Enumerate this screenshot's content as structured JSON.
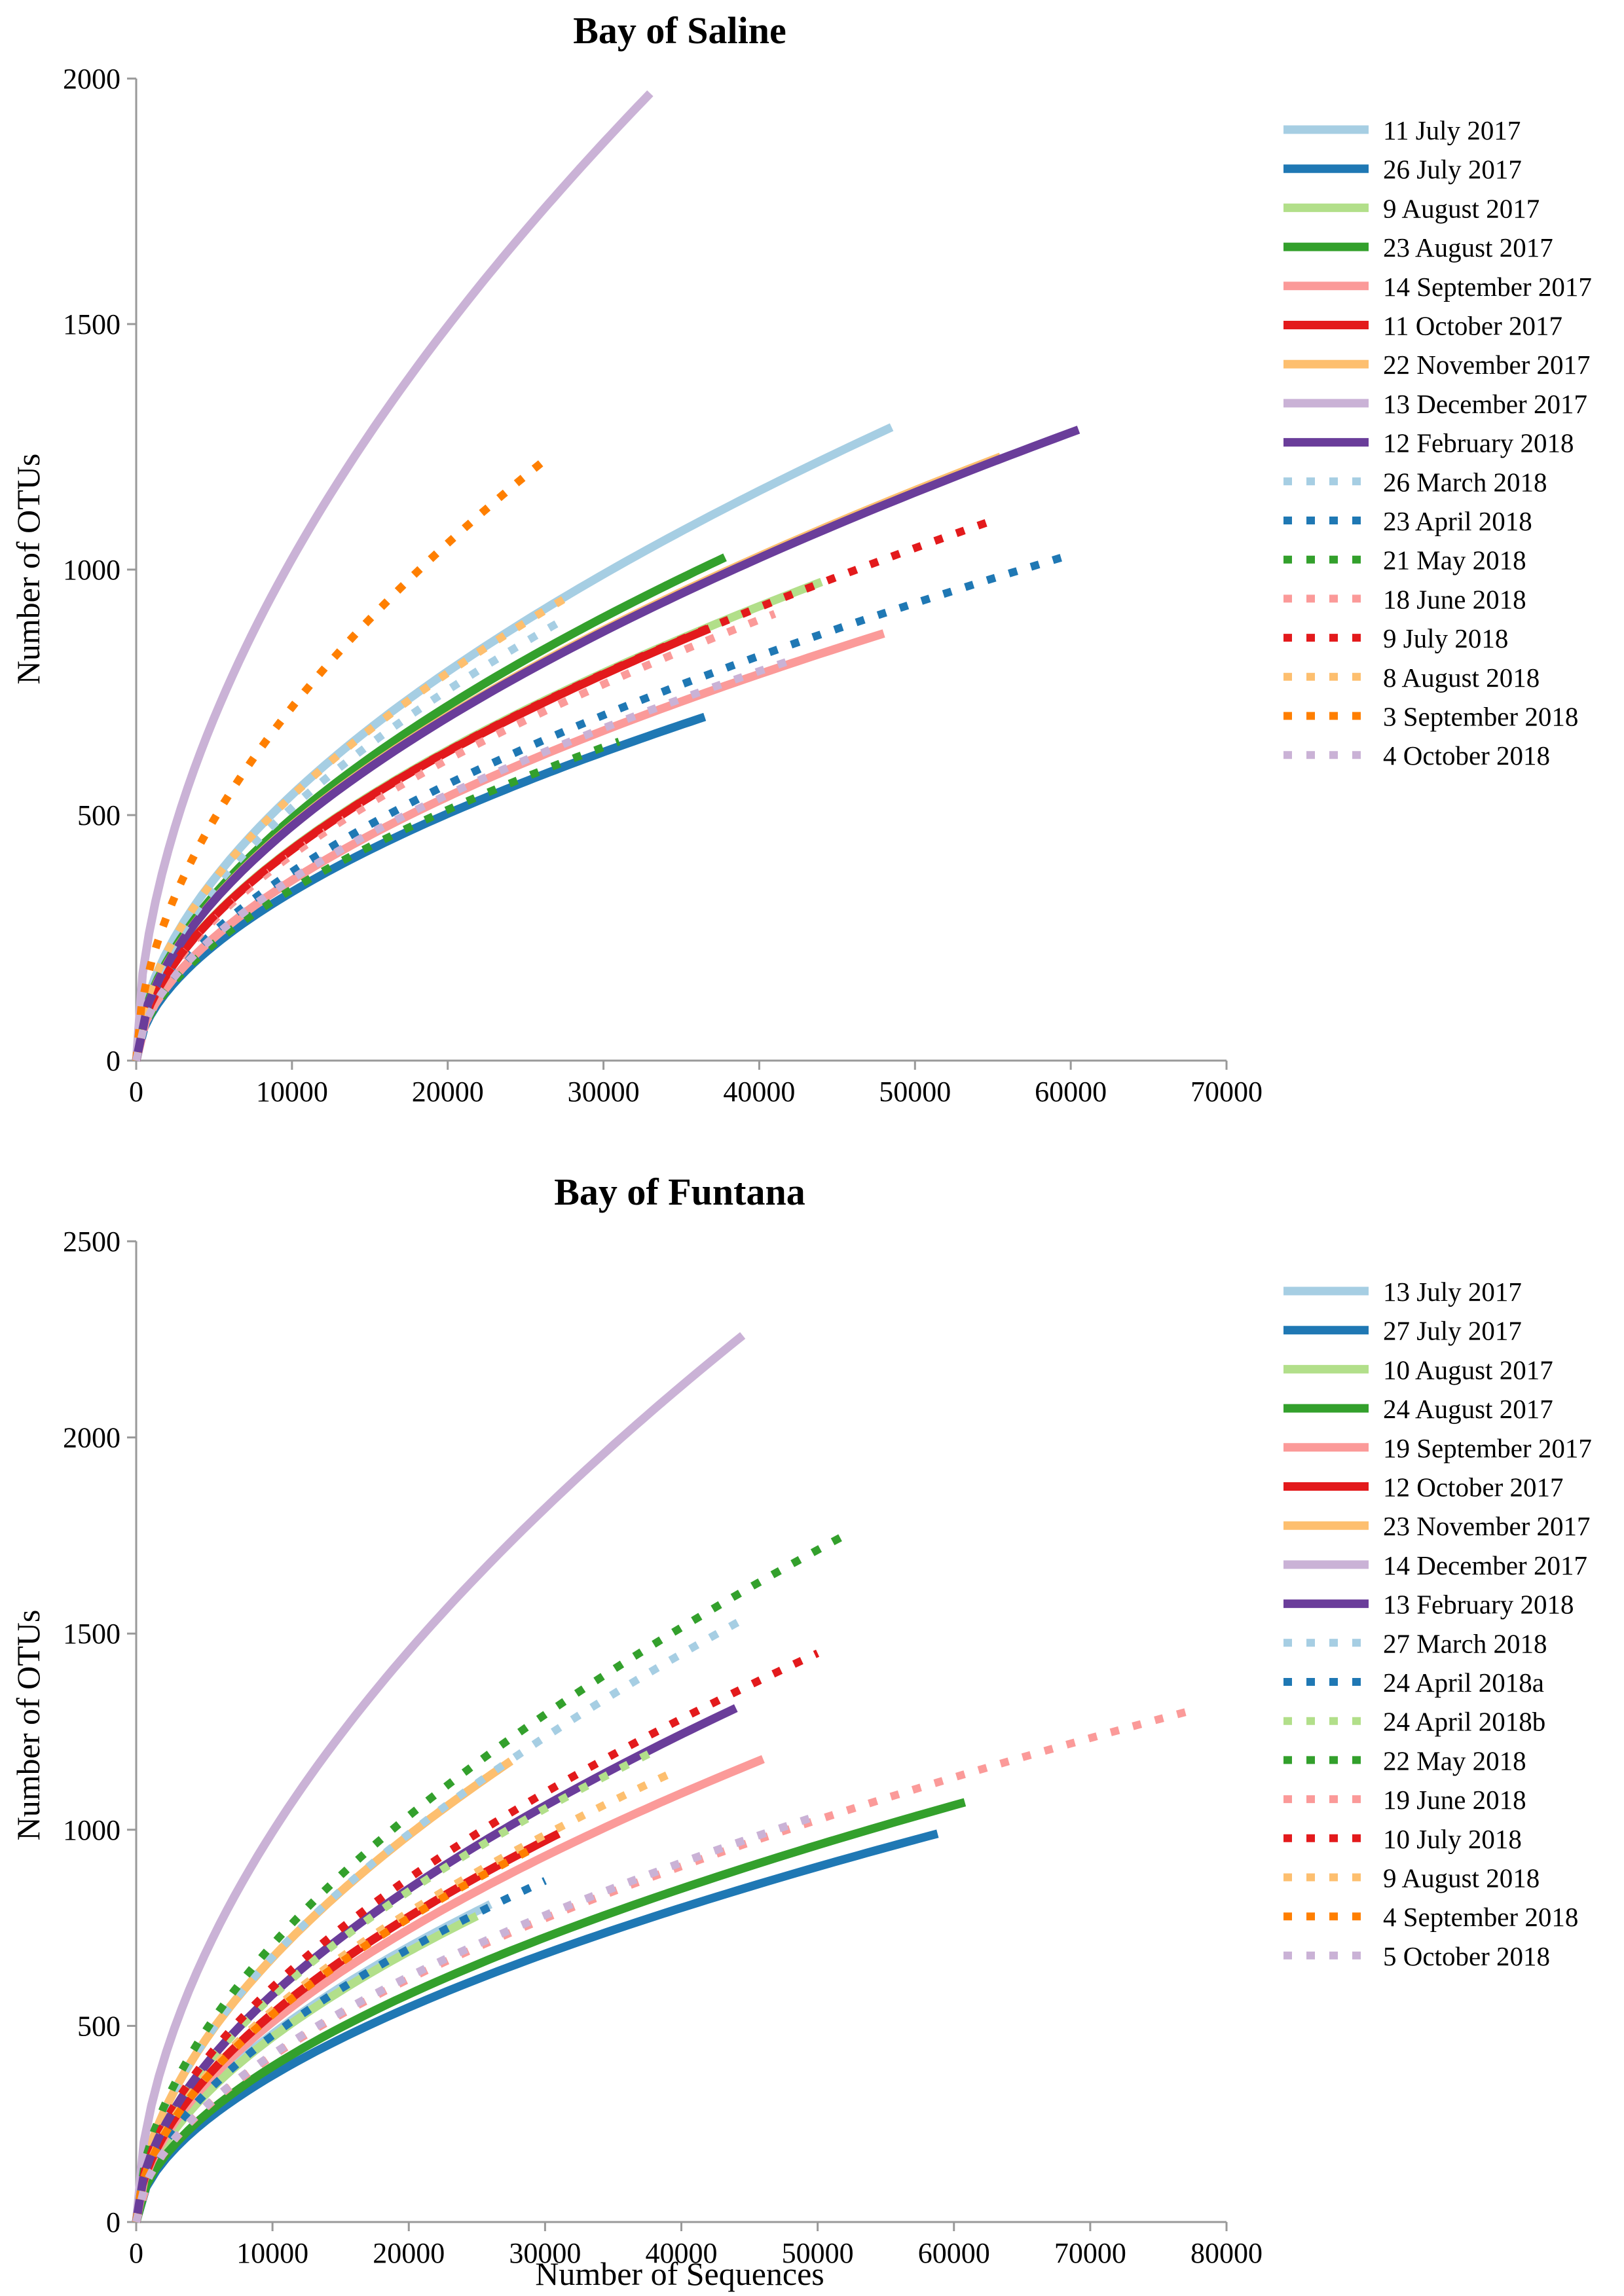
{
  "chart_data": [
    {
      "type": "line",
      "title": "Bay of Saline",
      "xlabel": "",
      "ylabel": "Number of OTUs",
      "xlim": [
        0,
        70000
      ],
      "ylim": [
        0,
        2000
      ],
      "xticks": [
        0,
        10000,
        20000,
        30000,
        40000,
        50000,
        60000,
        70000
      ],
      "yticks": [
        0,
        500,
        1000,
        1500,
        2000
      ],
      "legend_position": "right",
      "series": [
        {
          "name": "11 July 2017",
          "color": "#a6cee3",
          "style": "solid",
          "max_x": 48500,
          "max_y": 1290
        },
        {
          "name": "26 July 2017",
          "color": "#1f78b4",
          "style": "solid",
          "max_x": 36500,
          "max_y": 700
        },
        {
          "name": "9 August 2017",
          "color": "#b2df8a",
          "style": "solid",
          "max_x": 44000,
          "max_y": 975
        },
        {
          "name": "23 August 2017",
          "color": "#33a02c",
          "style": "solid",
          "max_x": 37800,
          "max_y": 1025
        },
        {
          "name": "14 September 2017",
          "color": "#fb9a99",
          "style": "solid",
          "max_x": 48000,
          "max_y": 870
        },
        {
          "name": "11 October 2017",
          "color": "#e31a1c",
          "style": "solid",
          "max_x": 36800,
          "max_y": 880
        },
        {
          "name": "22 November 2017",
          "color": "#fdbf6f",
          "style": "solid",
          "max_x": 55500,
          "max_y": 1230
        },
        {
          "name": "13 December 2017",
          "color": "#cab2d6",
          "style": "solid",
          "max_x": 33000,
          "max_y": 1970
        },
        {
          "name": "12 February 2018",
          "color": "#6a3d9a",
          "style": "solid",
          "max_x": 60500,
          "max_y": 1285
        },
        {
          "name": "26 March 2018",
          "color": "#a6cee3",
          "style": "dotted",
          "max_x": 27000,
          "max_y": 890
        },
        {
          "name": "23 April 2018",
          "color": "#1f78b4",
          "style": "dotted",
          "max_x": 60000,
          "max_y": 1030
        },
        {
          "name": "21 May 2018",
          "color": "#33a02c",
          "style": "dotted",
          "max_x": 31000,
          "max_y": 650
        },
        {
          "name": "18 June 2018",
          "color": "#fb9a99",
          "style": "dotted",
          "max_x": 41000,
          "max_y": 910
        },
        {
          "name": "9 July 2018",
          "color": "#e31a1c",
          "style": "dotted",
          "max_x": 55000,
          "max_y": 1100
        },
        {
          "name": "8 August 2018",
          "color": "#fdbf6f",
          "style": "dotted",
          "max_x": 28000,
          "max_y": 950
        },
        {
          "name": "3 September 2018",
          "color": "#ff7f00",
          "style": "dotted",
          "max_x": 26500,
          "max_y": 1230
        },
        {
          "name": "4 October 2018",
          "color": "#cab2d6",
          "style": "dotted",
          "max_x": 42500,
          "max_y": 820
        }
      ]
    },
    {
      "type": "line",
      "title": "Bay of Funtana",
      "xlabel": "Number of Sequences",
      "ylabel": "Number of OTUs",
      "xlim": [
        0,
        80000
      ],
      "ylim": [
        0,
        2500
      ],
      "xticks": [
        0,
        10000,
        20000,
        30000,
        40000,
        50000,
        60000,
        70000,
        80000
      ],
      "yticks": [
        0,
        500,
        1000,
        1500,
        2000,
        2500
      ],
      "legend_position": "right",
      "series": [
        {
          "name": "13 July 2017",
          "color": "#a6cee3",
          "style": "solid",
          "max_x": 26000,
          "max_y": 810
        },
        {
          "name": "27 July 2017",
          "color": "#1f78b4",
          "style": "solid",
          "max_x": 58800,
          "max_y": 990
        },
        {
          "name": "10 August 2017",
          "color": "#b2df8a",
          "style": "solid",
          "max_x": 25000,
          "max_y": 780
        },
        {
          "name": "24 August 2017",
          "color": "#33a02c",
          "style": "solid",
          "max_x": 60800,
          "max_y": 1070
        },
        {
          "name": "19 September 2017",
          "color": "#fb9a99",
          "style": "solid",
          "max_x": 46000,
          "max_y": 1180
        },
        {
          "name": "12 October 2017",
          "color": "#e31a1c",
          "style": "solid",
          "max_x": 31000,
          "max_y": 990
        },
        {
          "name": "23 November 2017",
          "color": "#fdbf6f",
          "style": "solid",
          "max_x": 27500,
          "max_y": 1175
        },
        {
          "name": "14 December 2017",
          "color": "#cab2d6",
          "style": "solid",
          "max_x": 44500,
          "max_y": 2260
        },
        {
          "name": "13 February 2018",
          "color": "#6a3d9a",
          "style": "solid",
          "max_x": 44000,
          "max_y": 1310
        },
        {
          "name": "27 March 2018",
          "color": "#a6cee3",
          "style": "dotted",
          "max_x": 45000,
          "max_y": 1545
        },
        {
          "name": "24 April 2018a",
          "color": "#1f78b4",
          "style": "dotted",
          "max_x": 30000,
          "max_y": 870
        },
        {
          "name": "24 April 2018b",
          "color": "#b2df8a",
          "style": "dotted",
          "max_x": 38000,
          "max_y": 1200
        },
        {
          "name": "22 May 2018",
          "color": "#33a02c",
          "style": "dotted",
          "max_x": 52500,
          "max_y": 1760
        },
        {
          "name": "19 June 2018",
          "color": "#fb9a99",
          "style": "dotted",
          "max_x": 77000,
          "max_y": 1300
        },
        {
          "name": "10 July 2018",
          "color": "#e31a1c",
          "style": "dotted",
          "max_x": 50000,
          "max_y": 1450
        },
        {
          "name": "9 August 2018",
          "color": "#fdbf6f",
          "style": "dotted",
          "max_x": 39000,
          "max_y": 1140
        },
        {
          "name": "4 September 2018",
          "color": "#ff7f00",
          "style": "dotted",
          "max_x": 29000,
          "max_y": 950
        },
        {
          "name": "5 October 2018",
          "color": "#cab2d6",
          "style": "dotted",
          "max_x": 49500,
          "max_y": 1030
        }
      ]
    }
  ]
}
